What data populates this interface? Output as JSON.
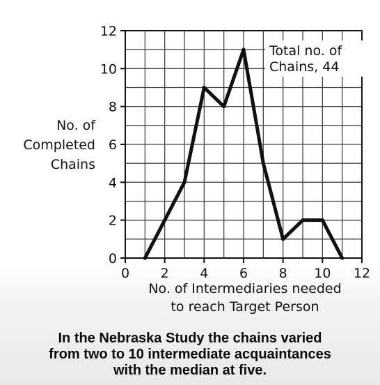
{
  "chart_data": {
    "type": "line",
    "x": [
      1,
      2,
      3,
      4,
      5,
      6,
      7,
      8,
      9,
      10,
      11
    ],
    "series": [
      {
        "values": [
          0,
          2,
          4,
          9,
          8,
          11,
          5,
          1,
          2,
          2,
          0
        ]
      }
    ],
    "xlabel_lines": [
      "No. of Intermediaries needed",
      "to reach Target Person"
    ],
    "ylabel_lines": [
      "No. of",
      "Completed",
      "Chains"
    ],
    "xlim": [
      0,
      12
    ],
    "ylim": [
      0,
      12
    ],
    "xticks": [
      "0",
      "2",
      "4",
      "6",
      "8",
      "10",
      "12"
    ],
    "yticks": [
      "0",
      "2",
      "4",
      "6",
      "8",
      "10",
      "12"
    ],
    "annotation_lines": [
      "Total no. of",
      "Chains, 44"
    ],
    "grid": true,
    "line_color": "#111111"
  },
  "caption_lines": [
    "In the Nebraska Study the chains varied",
    "from two to 10 intermediate acquaintances",
    "with the median at five."
  ]
}
